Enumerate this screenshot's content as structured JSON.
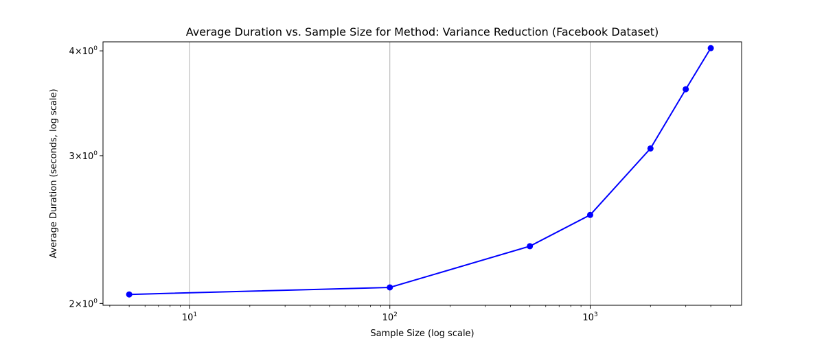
{
  "chart_data": {
    "type": "line",
    "title": "Average Duration vs. Sample Size for Method: Variance Reduction (Facebook Dataset)",
    "xlabel": "Sample Size (log scale)",
    "ylabel": "Average Duration (seconds, log scale)",
    "xscale": "log",
    "yscale": "log",
    "xlim": [
      3.7,
      5700
    ],
    "ylim": [
      1.99,
      4.1
    ],
    "grid": "x-major",
    "x_ticks": [
      {
        "value": 10,
        "base": "10",
        "exp": "1"
      },
      {
        "value": 100,
        "base": "10",
        "exp": "2"
      },
      {
        "value": 1000,
        "base": "10",
        "exp": "3"
      }
    ],
    "y_ticks": [
      {
        "value": 2,
        "coef": "2",
        "base": "10",
        "exp": "0"
      },
      {
        "value": 3,
        "coef": "3",
        "base": "10",
        "exp": "0"
      },
      {
        "value": 4,
        "coef": "4",
        "base": "10",
        "exp": "0"
      }
    ],
    "series": [
      {
        "color": "#0000ff",
        "marker": "circle",
        "x": [
          5,
          100,
          500,
          1000,
          2000,
          3000,
          4000
        ],
        "y": [
          2.05,
          2.09,
          2.34,
          2.55,
          3.06,
          3.6,
          4.03
        ]
      }
    ]
  }
}
